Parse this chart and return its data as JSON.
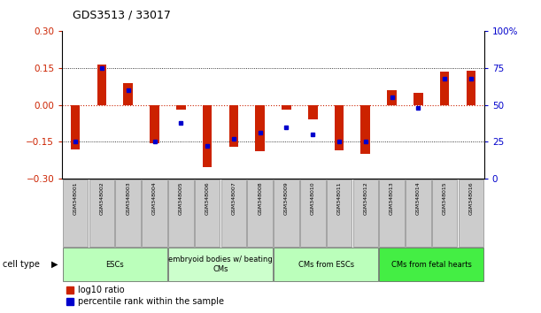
{
  "title": "GDS3513 / 33017",
  "samples": [
    "GSM348001",
    "GSM348002",
    "GSM348003",
    "GSM348004",
    "GSM348005",
    "GSM348006",
    "GSM348007",
    "GSM348008",
    "GSM348009",
    "GSM348010",
    "GSM348011",
    "GSM348012",
    "GSM348013",
    "GSM348014",
    "GSM348015",
    "GSM348016"
  ],
  "log10_ratio": [
    -0.18,
    0.165,
    0.09,
    -0.155,
    -0.02,
    -0.255,
    -0.17,
    -0.19,
    -0.02,
    -0.06,
    -0.185,
    -0.2,
    0.06,
    0.05,
    0.135,
    0.14
  ],
  "percentile_rank": [
    25,
    75,
    60,
    25,
    38,
    22,
    27,
    31,
    35,
    30,
    25,
    25,
    55,
    48,
    68,
    68
  ],
  "ylim_left": [
    -0.3,
    0.3
  ],
  "ylim_right": [
    0,
    100
  ],
  "yticks_left": [
    -0.3,
    -0.15,
    0,
    0.15,
    0.3
  ],
  "yticks_right": [
    0,
    25,
    50,
    75,
    100
  ],
  "cell_groups": [
    {
      "label": "ESCs",
      "start": 0,
      "end": 3,
      "color": "#bbffbb"
    },
    {
      "label": "embryoid bodies w/ beating\nCMs",
      "start": 4,
      "end": 7,
      "color": "#ccffcc"
    },
    {
      "label": "CMs from ESCs",
      "start": 8,
      "end": 11,
      "color": "#bbffbb"
    },
    {
      "label": "CMs from fetal hearts",
      "start": 12,
      "end": 15,
      "color": "#44ee44"
    }
  ],
  "bar_color_red": "#cc2200",
  "bar_color_blue": "#0000cc",
  "bar_width": 0.55,
  "dotted_line_color": "#000000",
  "zero_line_color": "#cc2200",
  "background_color": "#ffffff",
  "plot_bg_color": "#ffffff",
  "tick_label_color_left": "#cc2200",
  "tick_label_color_right": "#0000cc",
  "legend_red_label": "log10 ratio",
  "legend_blue_label": "percentile rank within the sample",
  "cell_type_label": "cell type"
}
